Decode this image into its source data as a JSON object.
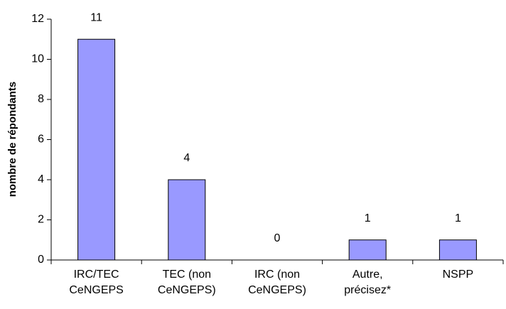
{
  "chart_data": {
    "type": "bar",
    "y_label": "nombre de répondants",
    "categories": [
      [
        "IRC/TEC",
        "CeNGEPS"
      ],
      [
        "TEC (non",
        "CeNGEPS)"
      ],
      [
        "IRC (non",
        "CeNGEPS)"
      ],
      [
        "Autre,",
        "précisez*"
      ],
      [
        "NSPP"
      ]
    ],
    "values": [
      11,
      4,
      0,
      1,
      1
    ],
    "color": "#9999ff",
    "ylim": [
      0,
      12
    ],
    "yticks": [
      0,
      2,
      4,
      6,
      8,
      10,
      12
    ],
    "grid": false
  }
}
